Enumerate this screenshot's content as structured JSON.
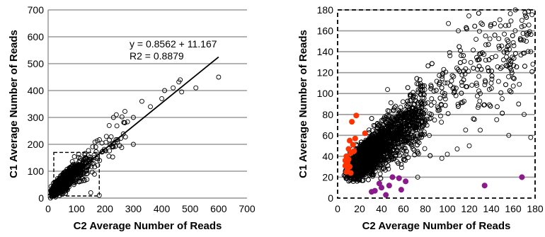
{
  "chart_data": [
    {
      "type": "scatter",
      "xlabel": "C2 Average Number of Reads",
      "ylabel": "C1  Average Number of Reads",
      "xlim": [
        0,
        700
      ],
      "ylim": [
        0,
        700
      ],
      "xticks": [
        "0",
        "100",
        "200",
        "300",
        "400",
        "500",
        "600",
        "700"
      ],
      "yticks": [
        "0",
        "100",
        "200",
        "300",
        "400",
        "500",
        "600",
        "700"
      ],
      "grid": "horizontal",
      "annotations": [
        "y = 0.8562 + 11.167",
        "R2 = 0.8879"
      ],
      "trendline": {
        "slope": 0.8562,
        "intercept": 11.167,
        "x_range": [
          0,
          600
        ]
      },
      "inset_box": {
        "x": [
          0,
          180
        ],
        "y": [
          0,
          170
        ]
      },
      "marker_color": "#000000",
      "outliers": [
        {
          "x": 600,
          "y": 450
        },
        {
          "x": 520,
          "y": 410
        },
        {
          "x": 465,
          "y": 440
        },
        {
          "x": 460,
          "y": 432
        },
        {
          "x": 470,
          "y": 395
        },
        {
          "x": 440,
          "y": 410
        },
        {
          "x": 410,
          "y": 400
        },
        {
          "x": 400,
          "y": 370
        },
        {
          "x": 360,
          "y": 340
        },
        {
          "x": 330,
          "y": 360
        },
        {
          "x": 300,
          "y": 300
        },
        {
          "x": 230,
          "y": 300
        },
        {
          "x": 180,
          "y": 10
        },
        {
          "x": 150,
          "y": 20
        },
        {
          "x": 270,
          "y": 280
        },
        {
          "x": 215,
          "y": 270
        },
        {
          "x": 240,
          "y": 310
        },
        {
          "x": 300,
          "y": 200
        }
      ]
    },
    {
      "type": "scatter",
      "xlabel": "C2 Average Number of Reads",
      "ylabel": "C1 Average Number of Reads",
      "xlim": [
        0,
        180
      ],
      "ylim": [
        0,
        180
      ],
      "xticks": [
        "0",
        "20",
        "40",
        "60",
        "80",
        "100",
        "120",
        "140",
        "160",
        "180"
      ],
      "yticks": [
        "0",
        "20",
        "40",
        "60",
        "80",
        "100",
        "120",
        "140",
        "160",
        "180"
      ],
      "grid": "horizontal",
      "frame": "dashed",
      "marker_color": "#000000",
      "highlight_red_color": "#ff3300",
      "highlight_purple_color": "#8b1a8b",
      "highlight_red": [
        {
          "x": 8,
          "y": 25
        },
        {
          "x": 7,
          "y": 31
        },
        {
          "x": 9,
          "y": 34
        },
        {
          "x": 10,
          "y": 37
        },
        {
          "x": 11,
          "y": 30
        },
        {
          "x": 8,
          "y": 40
        },
        {
          "x": 12,
          "y": 43
        },
        {
          "x": 10,
          "y": 47
        },
        {
          "x": 15,
          "y": 45
        },
        {
          "x": 14,
          "y": 51
        },
        {
          "x": 11,
          "y": 55
        },
        {
          "x": 16,
          "y": 57
        },
        {
          "x": 13,
          "y": 73
        },
        {
          "x": 17,
          "y": 79
        },
        {
          "x": 25,
          "y": 62
        },
        {
          "x": 9,
          "y": 28
        },
        {
          "x": 12,
          "y": 24
        },
        {
          "x": 7,
          "y": 36
        }
      ],
      "highlight_purple": [
        {
          "x": 31,
          "y": 6
        },
        {
          "x": 34,
          "y": 7
        },
        {
          "x": 38,
          "y": 14
        },
        {
          "x": 40,
          "y": 10
        },
        {
          "x": 44,
          "y": 3
        },
        {
          "x": 47,
          "y": 12
        },
        {
          "x": 50,
          "y": 20
        },
        {
          "x": 56,
          "y": 19
        },
        {
          "x": 62,
          "y": 16
        },
        {
          "x": 58,
          "y": 8
        },
        {
          "x": 134,
          "y": 12
        },
        {
          "x": 168,
          "y": 20
        }
      ],
      "outliers": [
        {
          "x": 101,
          "y": 167
        },
        {
          "x": 110,
          "y": 160
        },
        {
          "x": 85,
          "y": 108
        },
        {
          "x": 168,
          "y": 170
        },
        {
          "x": 162,
          "y": 180
        },
        {
          "x": 170,
          "y": 165
        },
        {
          "x": 172,
          "y": 150
        },
        {
          "x": 176,
          "y": 140
        },
        {
          "x": 178,
          "y": 128
        },
        {
          "x": 165,
          "y": 90
        },
        {
          "x": 150,
          "y": 95
        },
        {
          "x": 145,
          "y": 75
        },
        {
          "x": 160,
          "y": 115
        },
        {
          "x": 156,
          "y": 60
        },
        {
          "x": 130,
          "y": 65
        },
        {
          "x": 120,
          "y": 50
        },
        {
          "x": 109,
          "y": 47
        },
        {
          "x": 100,
          "y": 42
        },
        {
          "x": 95,
          "y": 38
        },
        {
          "x": 73,
          "y": 20
        },
        {
          "x": 176,
          "y": 58
        },
        {
          "x": 170,
          "y": 80
        },
        {
          "x": 140,
          "y": 110
        },
        {
          "x": 130,
          "y": 100
        }
      ]
    }
  ]
}
